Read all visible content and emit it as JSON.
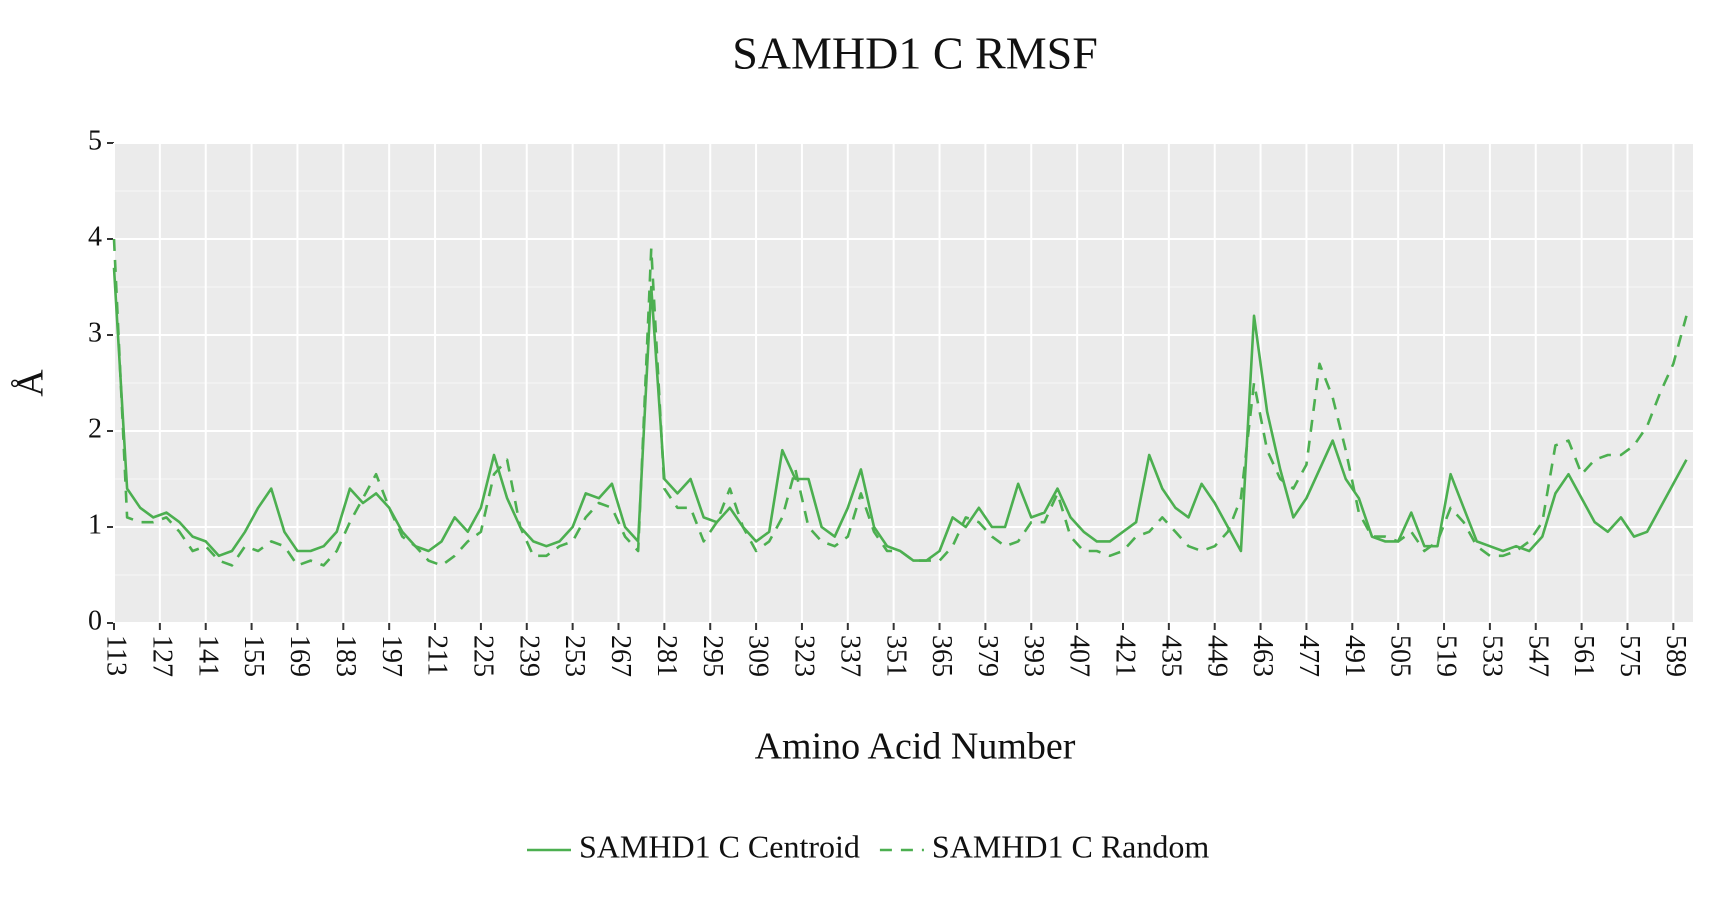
{
  "chart_data": {
    "type": "line",
    "title": "SAMHD1 C RMSF",
    "xlabel": "Amino Acid Number",
    "ylabel": "Å",
    "x": [
      113,
      117,
      121,
      125,
      129,
      133,
      137,
      141,
      145,
      149,
      153,
      157,
      161,
      165,
      169,
      173,
      177,
      181,
      185,
      189,
      193,
      197,
      201,
      205,
      209,
      213,
      217,
      221,
      225,
      229,
      233,
      237,
      241,
      245,
      249,
      253,
      257,
      261,
      265,
      269,
      273,
      277,
      281,
      285,
      289,
      293,
      297,
      301,
      305,
      309,
      313,
      317,
      321,
      325,
      329,
      333,
      337,
      341,
      345,
      349,
      353,
      357,
      361,
      365,
      369,
      373,
      377,
      381,
      385,
      389,
      393,
      397,
      401,
      405,
      409,
      413,
      417,
      421,
      425,
      429,
      433,
      437,
      441,
      445,
      449,
      453,
      457,
      461,
      465,
      469,
      473,
      477,
      481,
      485,
      489,
      493,
      497,
      501,
      505,
      509,
      513,
      517,
      521,
      525,
      529,
      533,
      537,
      541,
      545,
      549,
      553,
      557,
      561,
      565,
      569,
      573,
      577,
      581,
      585,
      589,
      593
    ],
    "series": [
      {
        "name": "SAMHD1 C Centroid",
        "color": "#4caf50",
        "dash": "solid",
        "values": [
          3.7,
          1.4,
          1.2,
          1.1,
          1.15,
          1.05,
          0.9,
          0.85,
          0.7,
          0.75,
          0.95,
          1.2,
          1.4,
          0.95,
          0.75,
          0.75,
          0.8,
          0.95,
          1.4,
          1.25,
          1.35,
          1.2,
          0.95,
          0.8,
          0.75,
          0.85,
          1.1,
          0.95,
          1.2,
          1.75,
          1.3,
          1.0,
          0.85,
          0.8,
          0.85,
          1.0,
          1.35,
          1.3,
          1.45,
          1.0,
          0.85,
          3.5,
          1.5,
          1.35,
          1.5,
          1.1,
          1.05,
          1.2,
          1.0,
          0.85,
          0.95,
          1.8,
          1.5,
          1.5,
          1.0,
          0.9,
          1.2,
          1.6,
          1.0,
          0.8,
          0.75,
          0.65,
          0.65,
          0.75,
          1.1,
          1.0,
          1.2,
          1.0,
          1.0,
          1.45,
          1.1,
          1.15,
          1.4,
          1.1,
          0.95,
          0.85,
          0.85,
          0.95,
          1.05,
          1.75,
          1.4,
          1.2,
          1.1,
          1.45,
          1.25,
          1.0,
          0.75,
          3.2,
          2.2,
          1.6,
          1.1,
          1.3,
          1.6,
          1.9,
          1.5,
          1.3,
          0.9,
          0.85,
          0.85,
          1.15,
          0.8,
          0.8,
          1.55,
          1.2,
          0.85,
          0.8,
          0.75,
          0.8,
          0.75,
          0.9,
          1.35,
          1.55,
          1.3,
          1.05,
          0.95,
          1.1,
          0.9,
          0.95,
          1.2,
          1.45,
          1.7
        ]
      },
      {
        "name": "SAMHD1 C Random",
        "color": "#4caf50",
        "dash": "dashed",
        "values": [
          4.0,
          1.1,
          1.05,
          1.05,
          1.1,
          0.95,
          0.75,
          0.8,
          0.65,
          0.6,
          0.8,
          0.75,
          0.85,
          0.8,
          0.6,
          0.65,
          0.6,
          0.75,
          1.05,
          1.3,
          1.55,
          1.2,
          0.9,
          0.8,
          0.65,
          0.6,
          0.7,
          0.85,
          0.95,
          1.55,
          1.7,
          1.0,
          0.7,
          0.7,
          0.8,
          0.85,
          1.1,
          1.25,
          1.2,
          0.9,
          0.75,
          3.9,
          1.4,
          1.2,
          1.2,
          0.85,
          1.05,
          1.4,
          1.0,
          0.75,
          0.85,
          1.1,
          1.6,
          1.0,
          0.85,
          0.8,
          0.9,
          1.35,
          0.95,
          0.75,
          0.75,
          0.65,
          0.65,
          0.65,
          0.8,
          1.1,
          1.05,
          0.9,
          0.8,
          0.85,
          1.05,
          1.05,
          1.35,
          0.9,
          0.75,
          0.75,
          0.7,
          0.75,
          0.9,
          0.95,
          1.1,
          0.95,
          0.8,
          0.75,
          0.8,
          0.95,
          1.3,
          2.5,
          1.8,
          1.5,
          1.4,
          1.65,
          2.7,
          2.35,
          1.8,
          1.15,
          0.9,
          0.9,
          0.85,
          0.95,
          0.75,
          0.85,
          1.2,
          1.05,
          0.8,
          0.7,
          0.7,
          0.75,
          0.85,
          1.05,
          1.85,
          1.9,
          1.55,
          1.7,
          1.75,
          1.75,
          1.85,
          2.05,
          2.4,
          2.7,
          3.2
        ]
      }
    ],
    "xlim": [
      113,
      595
    ],
    "ylim": [
      0,
      5
    ],
    "xticks": [
      113,
      127,
      141,
      155,
      169,
      183,
      197,
      211,
      225,
      239,
      253,
      267,
      281,
      295,
      309,
      323,
      337,
      351,
      365,
      379,
      393,
      407,
      421,
      435,
      449,
      463,
      477,
      491,
      505,
      519,
      533,
      547,
      561,
      575,
      589
    ],
    "yticks": [
      0,
      1,
      2,
      3,
      4,
      5
    ],
    "grid": true,
    "legend": "bottom"
  }
}
